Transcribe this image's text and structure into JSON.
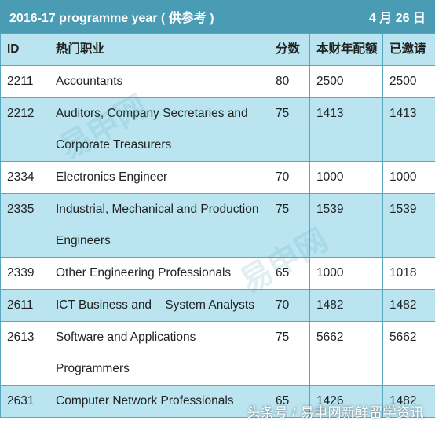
{
  "title_bar": {
    "left": "2016-17 programme year ( 供参考 )",
    "right": "4 月 26 日"
  },
  "table": {
    "headers": [
      "ID",
      "热门职业",
      "分数",
      "本财年配额",
      "已邀请"
    ],
    "rows": [
      {
        "id": "2211",
        "job": "Accountants",
        "score": "80",
        "quota": "2500",
        "invited": "2500"
      },
      {
        "id": "2212",
        "job": "Auditors, Company Secretaries and Corporate Treasurers",
        "score": "75",
        "quota": "1413",
        "invited": "1413"
      },
      {
        "id": "2334",
        "job": "Electronics Engineer",
        "score": "70",
        "quota": "1000",
        "invited": "1000"
      },
      {
        "id": "2335",
        "job": "Industrial, Mechanical and Production Engineers",
        "score": "75",
        "quota": "1539",
        "invited": "1539"
      },
      {
        "id": "2339",
        "job": "Other Engineering Professionals",
        "score": "65",
        "quota": "1000",
        "invited": "1018"
      },
      {
        "id": "2611",
        "job": "ICT Business and    System Analysts",
        "score": "70",
        "quota": "1482",
        "invited": "1482"
      },
      {
        "id": "2613",
        "job": "Software and Applications Programmers",
        "score": "75",
        "quota": "5662",
        "invited": "5662"
      },
      {
        "id": "2631",
        "job": "Computer Network Professionals",
        "score": "65",
        "quota": "1426",
        "invited": "1482"
      }
    ]
  },
  "watermark": "头条号 / 易申网新鲜留学资讯",
  "watermark_logo": "易申网"
}
